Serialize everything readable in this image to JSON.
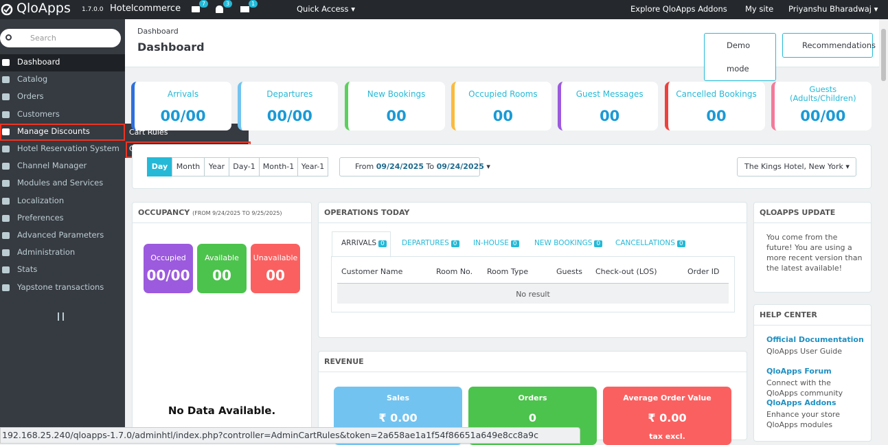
{
  "topbar": {
    "logo": "QloApps",
    "version": "1.7.0.0",
    "shop": "Hotelcommerce",
    "badges": [
      "7",
      "3",
      "1"
    ],
    "quick_access": "Quick Access",
    "explore": "Explore QloApps Addons",
    "my_site": "My site",
    "user": "Priyanshu Bharadwaj"
  },
  "sidebar": {
    "search_placeholder": "Search",
    "menu": [
      "Dashboard",
      "Catalog",
      "Orders",
      "Customers",
      "Manage Discounts",
      "Hotel Reservation System",
      "Channel Manager",
      "Modules and Services",
      "Localization",
      "Preferences",
      "Advanced Parameters",
      "Administration",
      "Stats",
      "Yapstone transactions"
    ],
    "submenu": [
      "Cart Rules",
      "Catalog Price Rules"
    ]
  },
  "header": {
    "breadcrumb": "Dashboard",
    "title": "Dashboard",
    "buttons": [
      "Demo mode",
      "Recommendations"
    ]
  },
  "kpis": [
    {
      "label": "Arrivals",
      "value": "00/00"
    },
    {
      "label": "Departures",
      "value": "00/00"
    },
    {
      "label": "New Bookings",
      "value": "00"
    },
    {
      "label": "Occupied Rooms",
      "value": "00"
    },
    {
      "label": "Guest Messages",
      "value": "00"
    },
    {
      "label": "Cancelled Bookings",
      "value": "00"
    },
    {
      "label": "Guests\n(Adults/Children)",
      "value": "00/00"
    }
  ],
  "filters": {
    "periods": [
      "Day",
      "Month",
      "Year",
      "Day-1",
      "Month-1",
      "Year-1"
    ],
    "from_label": "From",
    "date_from": "09/24/2025",
    "to_label": "To",
    "date_to": "09/24/2025",
    "hotel": "The Kings Hotel, New York"
  },
  "occupancy": {
    "title": "OCCUPANCY",
    "subtitle": "(FROM 9/24/2025 TO 9/25/2025)",
    "stats": [
      {
        "label": "Occupied",
        "value": "00/00"
      },
      {
        "label": "Available",
        "value": "00"
      },
      {
        "label": "Unavailable",
        "value": "00"
      }
    ],
    "empty": "No Data Available."
  },
  "operations": {
    "title": "OPERATIONS TODAY",
    "tabs": [
      {
        "label": "ARRIVALS",
        "count": "0"
      },
      {
        "label": "DEPARTURES",
        "count": "0"
      },
      {
        "label": "IN-HOUSE",
        "count": "0"
      },
      {
        "label": "NEW BOOKINGS",
        "count": "0"
      },
      {
        "label": "CANCELLATIONS",
        "count": "0"
      }
    ],
    "columns": [
      "Customer Name",
      "Room No.",
      "Room Type",
      "Guests",
      "Check-out (LOS)",
      "Order ID"
    ],
    "empty": "No result"
  },
  "revenue": {
    "title": "REVENUE",
    "cards": [
      {
        "label": "Sales",
        "value": "₹ 0.00"
      },
      {
        "label": "Orders",
        "value": "0"
      },
      {
        "label": "Average Order Value",
        "value": "₹ 0.00",
        "note": "tax excl."
      }
    ]
  },
  "update": {
    "title": "QLOAPPS UPDATE",
    "text": "You come from the future! You are using a more recent version than the latest available!"
  },
  "help": {
    "title": "HELP CENTER",
    "links": [
      {
        "title": "Official Documentation",
        "desc": "QloApps User Guide"
      },
      {
        "title": "QloApps Forum",
        "desc": "Connect with the QloApps community"
      },
      {
        "title": "QloApps Addons",
        "desc": "Enhance your store QloApps modules"
      }
    ]
  },
  "status_url": "192.168.25.240/qloapps-1.7.0/adminhtl/index.php?controller=AdminCartRules&token=2a658ae1a1f54f86651a649e8cc8a9c"
}
